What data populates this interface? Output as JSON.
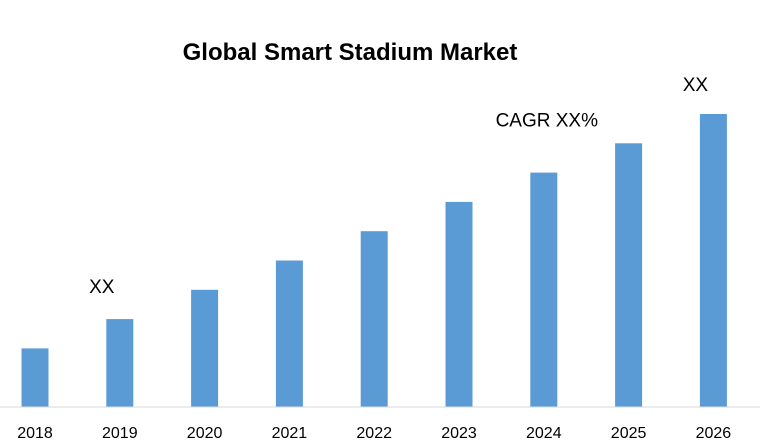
{
  "chart_data": {
    "type": "bar",
    "title": "Global Smart Stadium Market",
    "xlabel": "",
    "ylabel": "",
    "categories": [
      "2018",
      "2019",
      "2020",
      "2021",
      "2022",
      "2023",
      "2024",
      "2025",
      "2026"
    ],
    "values": [
      20,
      30,
      40,
      50,
      60,
      70,
      80,
      90,
      100
    ],
    "ylim": [
      0,
      100
    ],
    "grid": false,
    "legend": "none",
    "bar_color": "#5b9bd5",
    "annotations": [
      {
        "text": "XX",
        "category": "2019"
      },
      {
        "text": "CAGR XX%",
        "category": "2024"
      },
      {
        "text": "XX",
        "category": "2026"
      }
    ]
  }
}
